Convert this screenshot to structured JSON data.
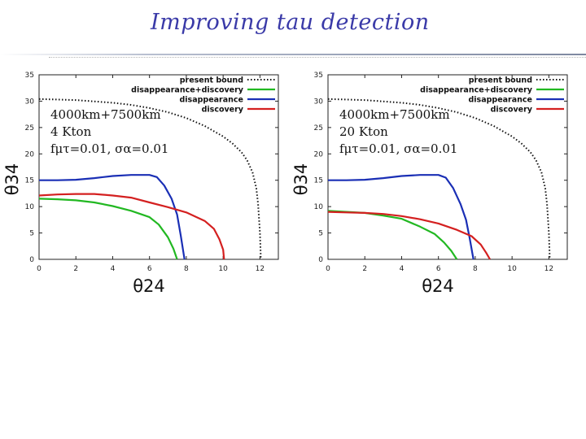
{
  "slide": {
    "title": "Improving tau detection"
  },
  "colors": {
    "present_bound": "#111111",
    "disappearance_discovery": "#22b822",
    "disappearance": "#1a2fb5",
    "discovery": "#d42020",
    "title": "#3a3aa8"
  },
  "chart_data": [
    {
      "type": "line",
      "xlabel": "θ24",
      "ylabel": "θ34",
      "xlim": [
        0,
        13
      ],
      "ylim": [
        0,
        35
      ],
      "xticks": [
        "0",
        "2",
        "4",
        "6",
        "8",
        "10",
        "12"
      ],
      "yticks": [
        "0",
        "5",
        "10",
        "15",
        "20",
        "25",
        "30",
        "35"
      ],
      "annotations": [
        "4000km+7500km",
        "4 Kton",
        "fμτ=0.01, σα=0.01"
      ],
      "legend_position": "top-right",
      "series": [
        {
          "name": "present bound",
          "style": "dotted",
          "x": [
            0,
            2,
            4,
            5,
            6,
            7,
            8,
            9,
            10,
            10.5,
            11,
            11.3,
            11.6,
            11.8,
            11.9,
            12,
            12.05
          ],
          "y": [
            30.4,
            30.2,
            29.7,
            29.3,
            28.7,
            27.9,
            26.8,
            25.3,
            23.3,
            22.0,
            20.3,
            18.8,
            16.5,
            13.5,
            10.5,
            5,
            0
          ]
        },
        {
          "name": "disappearance+discovery",
          "x": [
            0,
            1,
            2,
            3,
            4,
            5,
            6,
            6.5,
            7,
            7.3,
            7.5
          ],
          "y": [
            11.5,
            11.4,
            11.2,
            10.8,
            10.1,
            9.2,
            8.0,
            6.6,
            4.2,
            2.0,
            0
          ]
        },
        {
          "name": "disappearance",
          "x": [
            0,
            1,
            2,
            3,
            4,
            5,
            6,
            6.4,
            6.8,
            7.2,
            7.5,
            7.7,
            7.9
          ],
          "y": [
            15,
            15,
            15.1,
            15.4,
            15.8,
            16,
            16,
            15.6,
            14,
            11.5,
            8.5,
            4.5,
            0
          ]
        },
        {
          "name": "discovery",
          "x": [
            0,
            1,
            2,
            3,
            4,
            5,
            6,
            7,
            8,
            9,
            9.5,
            9.8,
            10,
            10.05
          ],
          "y": [
            12.1,
            12.3,
            12.4,
            12.4,
            12.1,
            11.7,
            10.8,
            9.9,
            8.9,
            7.3,
            5.8,
            3.8,
            1.8,
            0
          ]
        }
      ]
    },
    {
      "type": "line",
      "xlabel": "θ24",
      "ylabel": "θ34",
      "xlim": [
        0,
        13
      ],
      "ylim": [
        0,
        35
      ],
      "xticks": [
        "0",
        "2",
        "4",
        "6",
        "8",
        "10",
        "12"
      ],
      "yticks": [
        "0",
        "5",
        "10",
        "15",
        "20",
        "25",
        "30",
        "35"
      ],
      "annotations": [
        "4000km+7500km",
        "20 Kton",
        "fμτ=0.01, σα=0.01"
      ],
      "legend_position": "top-right",
      "series": [
        {
          "name": "present bound",
          "style": "dotted",
          "x": [
            0,
            2,
            4,
            5,
            6,
            7,
            8,
            9,
            10,
            10.5,
            11,
            11.3,
            11.6,
            11.8,
            11.9,
            12,
            12.05
          ],
          "y": [
            30.4,
            30.2,
            29.7,
            29.3,
            28.7,
            27.9,
            26.8,
            25.3,
            23.3,
            22.0,
            20.3,
            18.8,
            16.5,
            13.5,
            10.5,
            5,
            0
          ]
        },
        {
          "name": "disappearance+discovery",
          "x": [
            0,
            1,
            2,
            3,
            4,
            5,
            5.8,
            6.3,
            6.7,
            7
          ],
          "y": [
            9.2,
            9.0,
            8.8,
            8.3,
            7.7,
            6.2,
            4.8,
            3.2,
            1.6,
            0
          ]
        },
        {
          "name": "disappearance",
          "x": [
            0,
            1,
            2,
            3,
            4,
            5,
            6,
            6.4,
            6.8,
            7.2,
            7.5,
            7.7,
            7.9
          ],
          "y": [
            15,
            15,
            15.1,
            15.4,
            15.8,
            16,
            16,
            15.5,
            13.5,
            10.5,
            7.5,
            4,
            0
          ]
        },
        {
          "name": "discovery",
          "x": [
            0,
            1,
            2,
            3,
            4,
            5,
            6,
            7,
            7.8,
            8.3,
            8.6,
            8.8
          ],
          "y": [
            9.0,
            8.9,
            8.8,
            8.6,
            8.2,
            7.6,
            6.8,
            5.6,
            4.4,
            2.8,
            1.2,
            0
          ]
        }
      ]
    }
  ]
}
